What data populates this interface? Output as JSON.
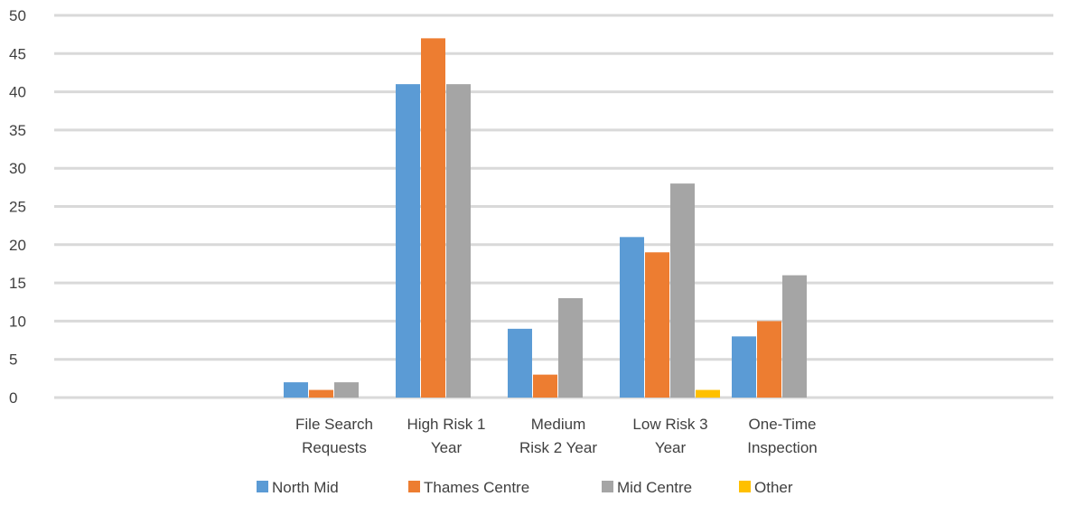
{
  "chart_data": {
    "type": "bar",
    "title": "",
    "xlabel": "",
    "ylabel": "",
    "ylim": [
      0,
      50
    ],
    "yticks": [
      0,
      5,
      10,
      15,
      20,
      25,
      30,
      35,
      40,
      45,
      50
    ],
    "grid": true,
    "legend_position": "bottom",
    "categories": [
      [
        "",
        ""
      ],
      [
        "",
        ""
      ],
      [
        "File Search",
        "Requests"
      ],
      [
        "High Risk 1",
        "Year"
      ],
      [
        "Medium",
        "Risk 2 Year"
      ],
      [
        "Low Risk 3",
        "Year"
      ],
      [
        "One-Time",
        "Inspection"
      ],
      [
        "",
        ""
      ],
      [
        "",
        ""
      ]
    ],
    "series": [
      {
        "name": "North Mid",
        "color": "#5b9bd5",
        "values": [
          null,
          null,
          2,
          41,
          9,
          21,
          8,
          null,
          null
        ]
      },
      {
        "name": "Thames Centre",
        "color": "#ed7d31",
        "values": [
          null,
          null,
          1,
          47,
          3,
          19,
          10,
          null,
          null
        ]
      },
      {
        "name": "Mid Centre",
        "color": "#a5a5a5",
        "values": [
          null,
          null,
          2,
          41,
          13,
          28,
          16,
          null,
          null
        ]
      },
      {
        "name": "Other",
        "color": "#ffc000",
        "values": [
          null,
          null,
          null,
          null,
          null,
          1,
          null,
          null,
          null
        ]
      }
    ],
    "gridline_color": "#d9d9d9"
  }
}
